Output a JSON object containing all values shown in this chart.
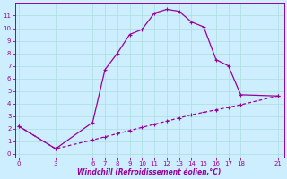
{
  "xlabel": "Windchill (Refroidissement éolien,°C)",
  "bg_color": "#cceeff",
  "line_color": "#990099",
  "grid_color": "#aadddd",
  "x_upper": [
    0,
    3,
    6,
    7,
    8,
    9,
    10,
    11,
    12,
    13,
    14,
    15,
    16,
    17,
    18,
    21
  ],
  "y_upper": [
    2.2,
    0.4,
    2.5,
    6.7,
    8.0,
    9.5,
    9.9,
    11.2,
    11.5,
    11.35,
    10.5,
    10.1,
    7.5,
    7.0,
    4.7,
    4.6
  ],
  "x_lower": [
    0,
    3,
    6,
    7,
    8,
    9,
    10,
    11,
    12,
    13,
    14,
    15,
    16,
    17,
    18,
    21
  ],
  "y_lower": [
    2.2,
    0.4,
    1.1,
    1.35,
    1.6,
    1.85,
    2.1,
    2.35,
    2.6,
    2.85,
    3.1,
    3.3,
    3.5,
    3.7,
    3.9,
    4.6
  ],
  "xticks": [
    0,
    3,
    6,
    7,
    8,
    9,
    10,
    11,
    12,
    13,
    14,
    15,
    16,
    17,
    18,
    21
  ],
  "yticks": [
    0,
    1,
    2,
    3,
    4,
    5,
    6,
    7,
    8,
    9,
    10,
    11
  ],
  "xlim": [
    -0.3,
    21.5
  ],
  "ylim": [
    -0.3,
    12.0
  ]
}
